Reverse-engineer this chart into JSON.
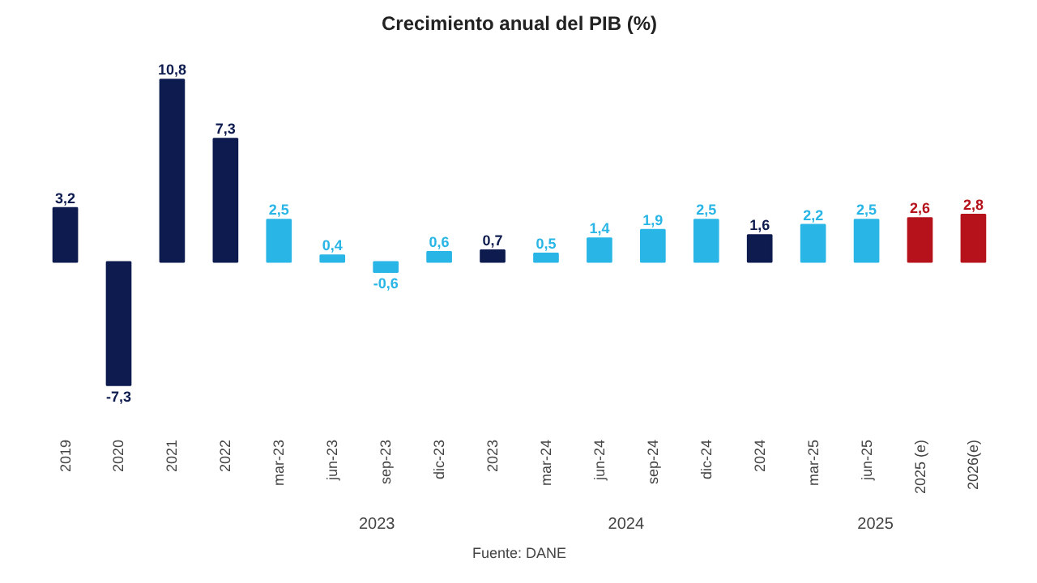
{
  "chart_data": {
    "type": "bar",
    "title": "Crecimiento anual del PIB (%)",
    "categories": [
      "2019",
      "2020",
      "2021",
      "2022",
      "mar-23",
      "jun-23",
      "sep-23",
      "dic-23",
      "2023",
      "mar-24",
      "jun-24",
      "sep-24",
      "dic-24",
      "2024",
      "mar-25",
      "jun-25",
      "2025 (e)",
      "2026(e)"
    ],
    "values": [
      3.2,
      -7.3,
      10.8,
      7.3,
      2.5,
      0.4,
      -0.6,
      0.6,
      0.7,
      0.5,
      1.4,
      1.9,
      2.5,
      1.6,
      2.2,
      2.5,
      2.6,
      2.8
    ],
    "colors": [
      "#0d1b4f",
      "#0d1b4f",
      "#0d1b4f",
      "#0d1b4f",
      "#29b6e6",
      "#29b6e6",
      "#29b6e6",
      "#29b6e6",
      "#0d1b4f",
      "#29b6e6",
      "#29b6e6",
      "#29b6e6",
      "#29b6e6",
      "#0d1b4f",
      "#29b6e6",
      "#29b6e6",
      "#b5121b",
      "#b5121b"
    ],
    "value_labels": [
      "3,2",
      "-7,3",
      "10,8",
      "7,3",
      "2,5",
      "0,4",
      "-0,6",
      "0,6",
      "0,7",
      "0,5",
      "1,4",
      "1,9",
      "2,5",
      "1,6",
      "2,2",
      "2,5",
      "2,6",
      "2,8"
    ],
    "annotations": [
      "2023",
      "2024",
      "2025",
      "Fuente: DANE"
    ],
    "grid": false
  }
}
